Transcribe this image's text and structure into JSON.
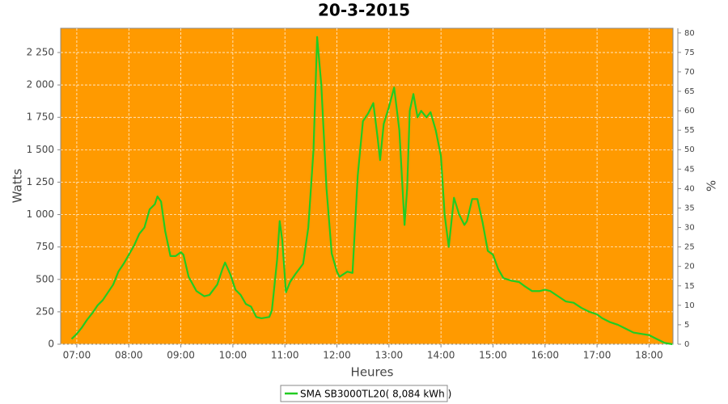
{
  "chart_data": {
    "type": "line",
    "title": "20-3-2015",
    "x_label": "Heures",
    "y_label": "Watts",
    "y2_label": "%",
    "xlim": [
      6.69,
      18.46
    ],
    "xticks": [
      {
        "value": 7,
        "label": "07:00"
      },
      {
        "value": 8,
        "label": "08:00"
      },
      {
        "value": 9,
        "label": "09:00"
      },
      {
        "value": 10,
        "label": "10:00"
      },
      {
        "value": 11,
        "label": "11:00"
      },
      {
        "value": 12,
        "label": "12:00"
      },
      {
        "value": 13,
        "label": "13:00"
      },
      {
        "value": 14,
        "label": "14:00"
      },
      {
        "value": 15,
        "label": "15:00"
      },
      {
        "value": 16,
        "label": "16:00"
      },
      {
        "value": 17,
        "label": "17:00"
      },
      {
        "value": 18,
        "label": "18:00"
      }
    ],
    "ylim": [
      0,
      2437
    ],
    "yticks": [
      0,
      250,
      500,
      750,
      {
        "value": 1000,
        "label": "1 000"
      },
      {
        "value": 1250,
        "label": "1 250"
      },
      {
        "value": 1500,
        "label": "1 500"
      },
      {
        "value": 1750,
        "label": "1 750"
      },
      {
        "value": 2000,
        "label": "2 000"
      },
      {
        "value": 2250,
        "label": "2 250"
      }
    ],
    "y2lim": [
      0,
      81.2
    ],
    "y2ticks": [
      0,
      5,
      10,
      15,
      20,
      25,
      30,
      35,
      40,
      45,
      50,
      55,
      60,
      65,
      70,
      75,
      80
    ],
    "grid": true,
    "background": "#ff9a00",
    "legend": "bottom",
    "x": [
      6.9,
      7.0,
      7.1,
      7.2,
      7.3,
      7.4,
      7.5,
      7.6,
      7.7,
      7.8,
      7.9,
      8.0,
      8.1,
      8.2,
      8.3,
      8.4,
      8.5,
      8.55,
      8.62,
      8.7,
      8.8,
      8.9,
      9.0,
      9.05,
      9.15,
      9.3,
      9.45,
      9.55,
      9.7,
      9.8,
      9.85,
      9.95,
      10.05,
      10.15,
      10.25,
      10.35,
      10.45,
      10.55,
      10.7,
      10.75,
      10.85,
      10.9,
      10.95,
      11.02,
      11.1,
      11.2,
      11.35,
      11.45,
      11.55,
      11.62,
      11.7,
      11.8,
      11.9,
      12.0,
      12.05,
      12.2,
      12.3,
      12.4,
      12.5,
      12.6,
      12.7,
      12.78,
      12.83,
      12.9,
      13.0,
      13.1,
      13.2,
      13.3,
      13.35,
      13.4,
      13.47,
      13.55,
      13.62,
      13.72,
      13.8,
      13.9,
      14.0,
      14.07,
      14.15,
      14.25,
      14.35,
      14.45,
      14.5,
      14.6,
      14.7,
      14.8,
      14.9,
      15.0,
      15.1,
      15.2,
      15.35,
      15.5,
      15.6,
      15.75,
      15.9,
      16.0,
      16.1,
      16.25,
      16.4,
      16.55,
      16.7,
      16.85,
      17.0,
      17.1,
      17.25,
      17.4,
      17.55,
      17.7,
      17.85,
      18.0,
      18.15,
      18.3,
      18.45
    ],
    "series": [
      {
        "name": "SMA SB3000TL20( 8,084 kWh )",
        "color": "#22cc22",
        "values": [
          40,
          80,
          130,
          190,
          240,
          300,
          340,
          400,
          460,
          560,
          620,
          690,
          760,
          850,
          900,
          1040,
          1080,
          1140,
          1100,
          870,
          680,
          680,
          710,
          690,
          520,
          410,
          370,
          380,
          460,
          580,
          630,
          540,
          420,
          380,
          310,
          290,
          210,
          200,
          210,
          260,
          650,
          950,
          800,
          400,
          480,
          540,
          620,
          900,
          1500,
          2370,
          2000,
          1200,
          700,
          560,
          520,
          560,
          550,
          1300,
          1720,
          1780,
          1860,
          1600,
          1420,
          1700,
          1830,
          1980,
          1650,
          920,
          1200,
          1800,
          1930,
          1750,
          1800,
          1750,
          1790,
          1650,
          1450,
          1000,
          750,
          1130,
          1000,
          920,
          950,
          1120,
          1120,
          940,
          720,
          690,
          580,
          510,
          490,
          480,
          450,
          410,
          410,
          420,
          410,
          370,
          330,
          320,
          280,
          250,
          230,
          200,
          170,
          150,
          120,
          90,
          80,
          70,
          40,
          10,
          0
        ]
      }
    ]
  }
}
